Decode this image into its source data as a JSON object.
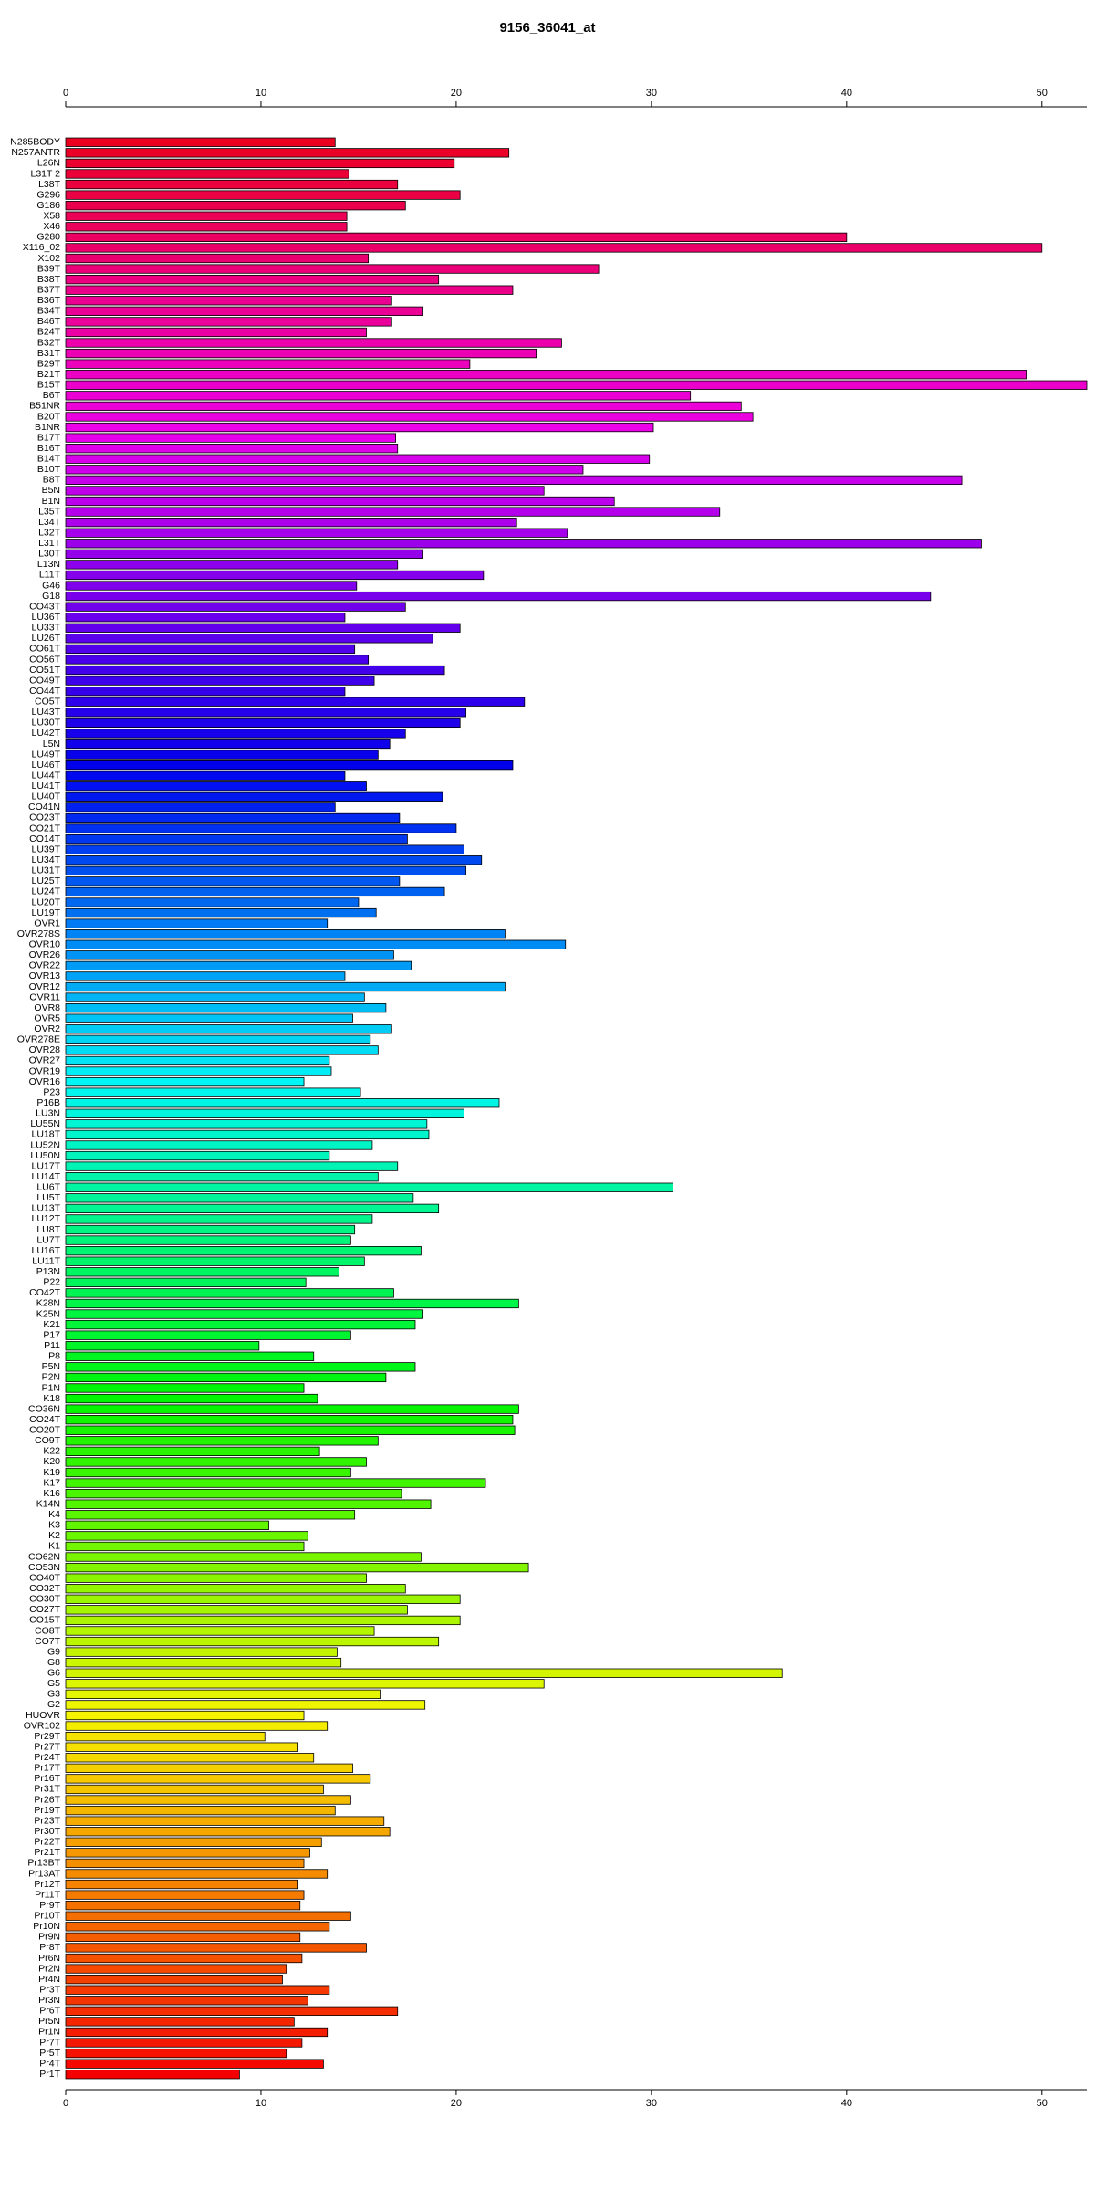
{
  "chart_data": {
    "type": "bar",
    "orientation": "horizontal",
    "title": "9156_36041_at",
    "categories": [
      "N285BODY",
      "N257ANTR",
      "L26N",
      "L31T 2",
      "L38T",
      "G296",
      "G186",
      "X58",
      "X46",
      "G280",
      "X116_02",
      "X102",
      "B39T",
      "B38T",
      "B37T",
      "B36T",
      "B34T",
      "B46T",
      "B24T",
      "B32T",
      "B31T",
      "B29T",
      "B21T",
      "B15T",
      "B6T",
      "B51NR",
      "B20T",
      "B1NR",
      "B17T",
      "B16T",
      "B14T",
      "B10T",
      "B8T",
      "B5N",
      "B1N",
      "L35T",
      "L34T",
      "L32T",
      "L31T",
      "L30T",
      "L13N",
      "L11T",
      "G46",
      "G18",
      "CO43T",
      "LU36T",
      "LU33T",
      "LU26T",
      "CO61T",
      "CO56T",
      "CO51T",
      "CO49T",
      "CO44T",
      "CO5T",
      "LU43T",
      "LU30T",
      "LU42T",
      "L5N",
      "LU49T",
      "LU46T",
      "LU44T",
      "LU41T",
      "LU40T",
      "CO41N",
      "CO23T",
      "CO21T",
      "CO14T",
      "LU39T",
      "LU34T",
      "LU31T",
      "LU25T",
      "LU24T",
      "LU20T",
      "LU19T",
      "OVR1",
      "OVR278S",
      "OVR10",
      "OVR26",
      "OVR22",
      "OVR13",
      "OVR12",
      "OVR11",
      "OVR8",
      "OVR5",
      "OVR2",
      "OVR278E",
      "OVR28",
      "OVR27",
      "OVR19",
      "OVR16",
      "P23",
      "P16B",
      "LU3N",
      "LU55N",
      "LU18T",
      "LU52N",
      "LU50N",
      "LU17T",
      "LU14T",
      "LU6T",
      "LU5T",
      "LU13T",
      "LU12T",
      "LU8T",
      "LU7T",
      "LU16T",
      "LU11T",
      "P13N",
      "P22",
      "CO42T",
      "K28N",
      "K25N",
      "K21",
      "P17",
      "P11",
      "P8",
      "P5N",
      "P2N",
      "P1N",
      "K18",
      "CO36N",
      "CO24T",
      "CO20T",
      "CO9T",
      "K22",
      "K20",
      "K19",
      "K17",
      "K16",
      "K14N",
      "K4",
      "K3",
      "K2",
      "K1",
      "CO62N",
      "CO53N",
      "CO40T",
      "CO32T",
      "CO30T",
      "CO27T",
      "CO15T",
      "CO8T",
      "CO7T",
      "G9",
      "G8",
      "G6",
      "G5",
      "G3",
      "G2",
      "HUOVR",
      "OVR102",
      "Pr29T",
      "Pr27T",
      "Pr24T",
      "Pr17T",
      "Pr16T",
      "Pr31T",
      "Pr26T",
      "Pr19T",
      "Pr23T",
      "Pr30T",
      "Pr22T",
      "Pr21T",
      "Pr13BT",
      "Pr13AT",
      "Pr12T",
      "Pr11T",
      "Pr9T",
      "Pr10T",
      "Pr10N",
      "Pr9N",
      "Pr8T",
      "Pr6N",
      "Pr2N",
      "Pr4N",
      "Pr3T",
      "Pr3N",
      "Pr6T",
      "Pr5N",
      "Pr1N",
      "Pr7T",
      "Pr5T",
      "Pr4T",
      "Pr1T"
    ],
    "values": [
      13.8,
      22.7,
      19.9,
      14.5,
      17.0,
      20.2,
      17.4,
      14.4,
      14.4,
      40.0,
      50.0,
      15.5,
      27.3,
      19.1,
      22.9,
      16.7,
      18.3,
      16.7,
      15.4,
      25.4,
      24.1,
      20.7,
      49.2,
      52.3,
      32.0,
      34.6,
      35.2,
      30.1,
      16.9,
      17.0,
      29.9,
      26.5,
      45.9,
      24.5,
      28.1,
      33.5,
      23.1,
      25.7,
      46.9,
      18.3,
      17.0,
      21.4,
      14.9,
      44.3,
      17.4,
      14.3,
      20.2,
      18.8,
      14.8,
      15.5,
      19.4,
      15.8,
      14.3,
      23.5,
      20.5,
      20.2,
      17.4,
      16.6,
      16.0,
      22.9,
      14.3,
      15.4,
      19.3,
      13.8,
      17.1,
      20.0,
      17.5,
      20.4,
      21.3,
      20.5,
      17.1,
      19.4,
      15.0,
      15.9,
      13.4,
      22.5,
      25.6,
      16.8,
      17.7,
      14.3,
      22.5,
      15.3,
      16.4,
      14.7,
      16.7,
      15.6,
      16.0,
      13.5,
      13.6,
      12.2,
      15.1,
      22.2,
      20.4,
      18.5,
      18.6,
      15.7,
      13.5,
      17.0,
      16.0,
      31.1,
      17.8,
      19.1,
      15.7,
      14.8,
      14.6,
      18.2,
      15.3,
      14.0,
      12.3,
      16.8,
      23.2,
      18.3,
      17.9,
      14.6,
      9.9,
      12.7,
      17.9,
      16.4,
      12.2,
      12.9,
      23.2,
      22.9,
      23.0,
      16.0,
      13.0,
      15.4,
      14.6,
      21.5,
      17.2,
      18.7,
      14.8,
      10.4,
      12.4,
      12.2,
      18.2,
      23.7,
      15.4,
      17.4,
      20.2,
      17.5,
      20.2,
      15.8,
      19.1,
      13.9,
      14.1,
      36.7,
      24.5,
      16.1,
      18.4,
      12.2,
      13.4,
      10.2,
      11.9,
      12.7,
      14.7,
      15.6,
      13.2,
      14.6,
      13.8,
      16.3,
      16.6,
      13.1,
      12.5,
      12.2,
      13.4,
      11.9,
      12.2,
      12.0,
      14.6,
      13.5,
      12.0,
      15.4,
      12.1,
      11.3,
      11.1,
      13.5,
      12.4,
      17.0,
      11.7,
      13.4,
      12.1,
      11.3,
      13.2,
      8.9
    ],
    "colors": [
      "hsl(352,100%,46%)",
      "hsl(350,100%,46%)",
      "hsl(348,100%,46%)",
      "hsl(346,100%,46%)",
      "hsl(344,100%,46%)",
      "hsl(342,100%,46%)",
      "hsl(340,100%,46%)",
      "hsl(338,100%,46%)",
      "hsl(337,100%,46%)",
      "hsl(335,100%,46%)",
      "hsl(333,100%,46%)",
      "hsl(331,100%,46%)",
      "hsl(329,100%,46%)",
      "hsl(327,100%,46%)",
      "hsl(325,100%,46%)",
      "hsl(323,100%,46%)",
      "hsl(322,100%,46%)",
      "hsl(320,100%,46%)",
      "hsl(318,100%,46%)",
      "hsl(316,100%,46%)",
      "hsl(314,100%,46%)",
      "hsl(312,100%,46%)",
      "hsl(310,100%,46%)",
      "hsl(308,100%,46%)",
      "hsl(306,100%,46%)",
      "hsl(305,100%,46%)",
      "hsl(303,100%,46%)",
      "hsl(301,100%,46%)",
      "hsl(299,100%,46%)",
      "hsl(297,100%,46%)",
      "hsl(295,100%,46%)",
      "hsl(293,100%,46%)",
      "hsl(291,100%,46%)",
      "hsl(289,100%,46%)",
      "hsl(288,100%,46%)",
      "hsl(286,100%,46%)",
      "hsl(284,100%,46%)",
      "hsl(282,100%,46%)",
      "hsl(280,100%,46%)",
      "hsl(278,100%,46%)",
      "hsl(276,100%,46%)",
      "hsl(274,100%,46%)",
      "hsl(273,100%,46%)",
      "hsl(271,100%,46%)",
      "hsl(269,100%,46%)",
      "hsl(267,100%,46%)",
      "hsl(265,100%,46%)",
      "hsl(263,100%,46%)",
      "hsl(261,100%,46%)",
      "hsl(259,100%,46%)",
      "hsl(257,100%,46%)",
      "hsl(256,100%,46%)",
      "hsl(254,100%,46%)",
      "hsl(252,100%,46%)",
      "hsl(250,100%,46%)",
      "hsl(248,100%,46%)",
      "hsl(246,100%,46%)",
      "hsl(244,100%,46%)",
      "hsl(242,100%,46%)",
      "hsl(240,100%,46%)",
      "hsl(238,100%,47%)",
      "hsl(236,100%,47%)",
      "hsl(234,100%,47%)",
      "hsl(232,100%,47%)",
      "hsl(230,100%,47%)",
      "hsl(228,100%,47%)",
      "hsl(226,100%,47%)",
      "hsl(224,100%,47%)",
      "hsl(222,100%,47%)",
      "hsl(220,100%,47%)",
      "hsl(218,100%,47%)",
      "hsl(216,100%,47%)",
      "hsl(214,100%,47%)",
      "hsl(212,100%,47%)",
      "hsl(210,100%,48%)",
      "hsl(208,100%,48%)",
      "hsl(206,100%,48%)",
      "hsl(204,100%,48%)",
      "hsl(202,100%,48%)",
      "hsl(200,100%,48%)",
      "hsl(198,100%,48%)",
      "hsl(196,100%,48%)",
      "hsl(194,100%,48%)",
      "hsl(192,100%,48%)",
      "hsl(190,100%,48%)",
      "hsl(188,100%,48%)",
      "hsl(186,100%,48%)",
      "hsl(184,100%,48%)",
      "hsl(182,100%,48%)",
      "hsl(180,100%,48%)",
      "hsl(178,100%,48%)",
      "hsl(176,100%,48%)",
      "hsl(174,100%,48%)",
      "hsl(172,100%,48%)",
      "hsl(170,100%,48%)",
      "hsl(168,100%,48%)",
      "hsl(166,100%,48%)",
      "hsl(164,100%,48%)",
      "hsl(162,100%,48%)",
      "hsl(160,100%,48%)",
      "hsl(158,100%,48%)",
      "hsl(156,100%,48%)",
      "hsl(154,100%,48%)",
      "hsl(152,100%,48%)",
      "hsl(150,100%,48%)",
      "hsl(148,100%,48%)",
      "hsl(146,100%,48%)",
      "hsl(144,100%,48%)",
      "hsl(142,100%,48%)",
      "hsl(140,100%,48%)",
      "hsl(138,100%,48%)",
      "hsl(136,100%,48%)",
      "hsl(134,100%,48%)",
      "hsl(132,100%,48%)",
      "hsl(130,100%,48%)",
      "hsl(128,100%,48%)",
      "hsl(126,100%,48%)",
      "hsl(124,100%,48%)",
      "hsl(122,100%,48%)",
      "hsl(120,100%,48%)",
      "hsl(118,100%,48%)",
      "hsl(116,100%,48%)",
      "hsl(114,100%,48%)",
      "hsl(112,100%,48%)",
      "hsl(110,100%,48%)",
      "hsl(108,100%,48%)",
      "hsl(106,100%,48%)",
      "hsl(104,100%,48%)",
      "hsl(102,100%,48%)",
      "hsl(100,100%,48%)",
      "hsl(98,100%,48%)",
      "hsl(96,100%,48%)",
      "hsl(94,100%,48%)",
      "hsl(92,100%,48%)",
      "hsl(90,100%,48%)",
      "hsl(88,100%,48%)",
      "hsl(86,100%,48%)",
      "hsl(84,100%,48%)",
      "hsl(82,100%,48%)",
      "hsl(80,100%,48%)",
      "hsl(78,100%,48%)",
      "hsl(76,100%,48%)",
      "hsl(74,100%,48%)",
      "hsl(72,100%,48%)",
      "hsl(70,100%,48%)",
      "hsl(68,100%,48%)",
      "hsl(66,100%,48%)",
      "hsl(64,100%,48%)",
      "hsl(62,100%,48%)",
      "hsl(60,100%,48%)",
      "hsl(58,100%,48%)",
      "hsl(56,100%,48%)",
      "hsl(55,100%,48%)",
      "hsl(53,100%,48%)",
      "hsl(51,100%,48%)",
      "hsl(49,100%,48%)",
      "hsl(48,100%,48%)",
      "hsl(46,100%,48%)",
      "hsl(44,100%,48%)",
      "hsl(42,100%,48%)",
      "hsl(41,100%,48%)",
      "hsl(39,100%,48%)",
      "hsl(37,100%,48%)",
      "hsl(35,100%,48%)",
      "hsl(34,100%,48%)",
      "hsl(32,100%,48%)",
      "hsl(30,100%,48%)",
      "hsl(28,100%,48%)",
      "hsl(27,100%,48%)",
      "hsl(25,100%,48%)",
      "hsl(23,100%,48%)",
      "hsl(21,100%,48%)",
      "hsl(20,100%,48%)",
      "hsl(18,100%,48%)",
      "hsl(16,100%,48%)",
      "hsl(14,100%,48%)",
      "hsl(13,100%,48%)",
      "hsl(11,100%,48%)",
      "hsl(9,100%,48%)",
      "hsl(7,100%,48%)",
      "hsl(6,100%,48%)",
      "hsl(4,100%,48%)",
      "hsl(2,100%,48%)",
      "hsl(0,100%,48%)"
    ],
    "xlim": [
      0,
      52.3
    ],
    "xticks": [
      0,
      10,
      20,
      30,
      40,
      50
    ]
  }
}
